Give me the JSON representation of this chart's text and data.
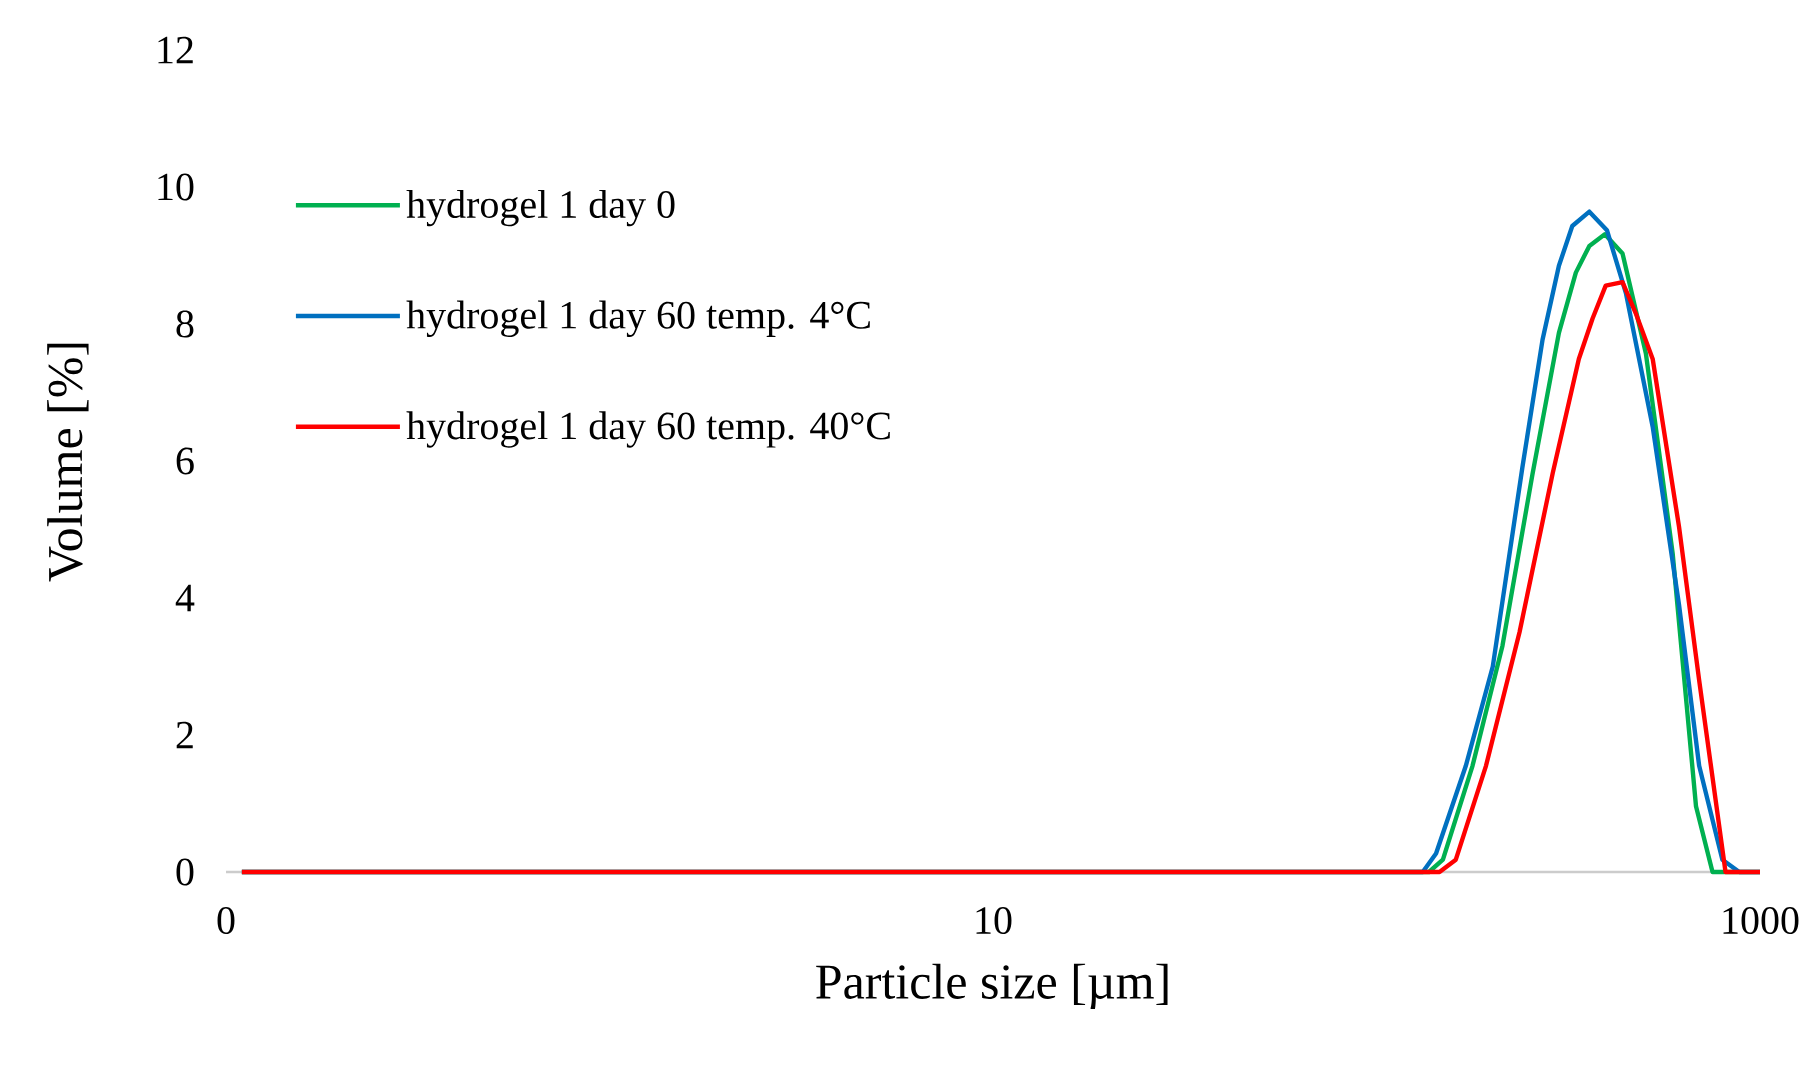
{
  "chart_data": {
    "type": "line",
    "xlabel": "Particle size [µm]",
    "ylabel": "Volume [%]",
    "log": "x",
    "legend": "top left",
    "xlim": [
      0.1,
      1000
    ],
    "ylim": [
      0,
      12
    ],
    "xticks": [
      {
        "value": 0.1,
        "label": "0"
      },
      10,
      1000
    ],
    "yticks": [
      0,
      2,
      4,
      6,
      8,
      10,
      12
    ],
    "series": [
      {
        "name": "hydrogel 1 day 0",
        "color": "#00b050",
        "x": [
          0.11,
          137,
          149,
          178,
          213,
          255,
          299,
          331,
          359,
          394,
          438,
          504,
          592,
          681,
          752,
          802,
          1000
        ],
        "values": [
          0,
          0,
          0.18,
          1.55,
          3.3,
          5.8,
          7.87,
          8.75,
          9.14,
          9.31,
          9.03,
          7.57,
          4.65,
          0.96,
          0,
          0,
          0
        ]
      },
      {
        "name": "hydrogel 1 day 60 temp. 4°C",
        "color": "#0070c0",
        "x": [
          0.11,
          132,
          143,
          171,
          201,
          240,
          271,
          299,
          324,
          359,
          399,
          447,
          525,
          615,
          694,
          798,
          883,
          1000
        ],
        "values": [
          0,
          0,
          0.27,
          1.55,
          3.0,
          5.9,
          7.77,
          8.85,
          9.43,
          9.64,
          9.37,
          8.45,
          6.5,
          3.9,
          1.55,
          0.18,
          0,
          0
        ]
      },
      {
        "name": "hydrogel 1 day 60 temp. 40°C",
        "color": "#ff0000",
        "x": [
          0.11,
          146,
          161,
          193,
          236,
          288,
          337,
          366,
          396,
          438,
          474,
          525,
          615,
          694,
          813,
          1000
        ],
        "values": [
          0,
          0,
          0.18,
          1.55,
          3.5,
          5.82,
          7.49,
          8.08,
          8.56,
          8.61,
          8.16,
          7.49,
          5.04,
          2.8,
          0,
          0
        ]
      }
    ]
  }
}
